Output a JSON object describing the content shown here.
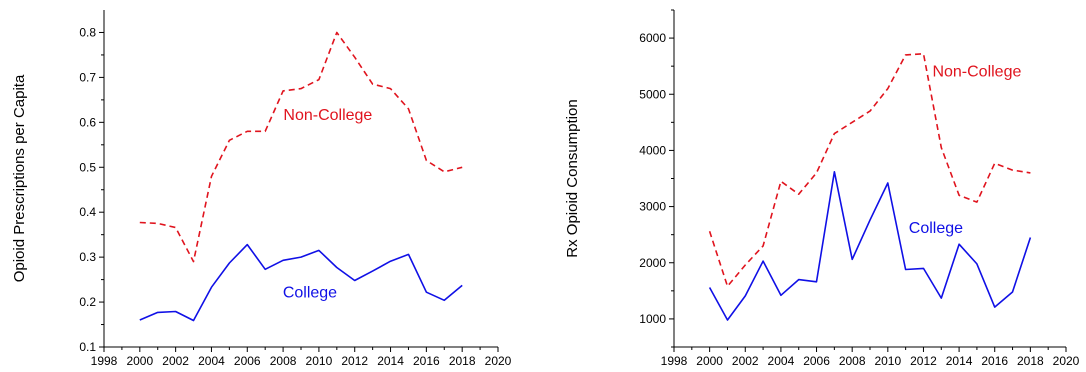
{
  "chart_data": [
    {
      "type": "line",
      "title": "",
      "xlabel": "",
      "ylabel": "Opioid Prescriptions per Capita",
      "xlim": [
        1998,
        2020
      ],
      "ylim": [
        0.1,
        0.85
      ],
      "xticks": [
        1998,
        2000,
        2002,
        2004,
        2006,
        2008,
        2010,
        2012,
        2014,
        2016,
        2018,
        2020
      ],
      "yticks": [
        0.1,
        0.2,
        0.3,
        0.4,
        0.5,
        0.6,
        0.7,
        0.8
      ],
      "ytick_labels": [
        "0.1",
        "0.2",
        "0.3",
        "0.4",
        "0.5",
        "0.6",
        "0.7",
        "0.8"
      ],
      "grid": false,
      "x": [
        2000,
        2001,
        2002,
        2003,
        2004,
        2005,
        2006,
        2007,
        2008,
        2009,
        2010,
        2011,
        2012,
        2013,
        2014,
        2015,
        2016,
        2017,
        2018
      ],
      "series": [
        {
          "name": "Non-College",
          "color": "#e0141e",
          "dash": "dashed",
          "label_at": [
            2010.5,
            0.605
          ],
          "values": [
            0.377,
            0.375,
            0.366,
            0.29,
            0.48,
            0.56,
            0.58,
            0.58,
            0.67,
            0.675,
            0.695,
            0.8,
            0.745,
            0.685,
            0.675,
            0.63,
            0.515,
            0.49,
            0.5
          ]
        },
        {
          "name": "College",
          "color": "#1010e6",
          "dash": "solid",
          "label_at": [
            2009.5,
            0.21
          ],
          "values": [
            0.16,
            0.177,
            0.179,
            0.159,
            0.233,
            0.287,
            0.328,
            0.273,
            0.293,
            0.3,
            0.315,
            0.277,
            0.248,
            0.269,
            0.291,
            0.306,
            0.222,
            0.204,
            0.237
          ]
        }
      ]
    },
    {
      "type": "line",
      "title": "",
      "xlabel": "",
      "ylabel": "Rx Opioid Consumption",
      "xlim": [
        1998,
        2020
      ],
      "ylim": [
        500,
        6500
      ],
      "xticks": [
        1998,
        2000,
        2002,
        2004,
        2006,
        2008,
        2010,
        2012,
        2014,
        2016,
        2018,
        2020
      ],
      "yticks": [
        1000,
        2000,
        3000,
        4000,
        5000,
        6000
      ],
      "ytick_labels": [
        "1000",
        "2000",
        "3000",
        "4000",
        "5000",
        "6000"
      ],
      "grid": false,
      "x": [
        2000,
        2001,
        2002,
        2003,
        2004,
        2005,
        2006,
        2007,
        2008,
        2009,
        2010,
        2011,
        2012,
        2013,
        2014,
        2015,
        2016,
        2017,
        2018
      ],
      "series": [
        {
          "name": "Non-College",
          "color": "#e0141e",
          "dash": "dashed",
          "label_at": [
            2015,
            5320
          ],
          "values": [
            2560,
            1580,
            1960,
            2300,
            3450,
            3220,
            3600,
            4300,
            4500,
            4700,
            5100,
            5700,
            5720,
            4050,
            3200,
            3080,
            3770,
            3650,
            3600
          ]
        },
        {
          "name": "College",
          "color": "#1010e6",
          "dash": "solid",
          "label_at": [
            2012.7,
            2530
          ],
          "values": [
            1560,
            980,
            1410,
            2030,
            1420,
            1700,
            1660,
            3620,
            2060,
            2760,
            3420,
            1880,
            1900,
            1370,
            2330,
            1980,
            1210,
            1480,
            2450
          ]
        }
      ]
    }
  ]
}
